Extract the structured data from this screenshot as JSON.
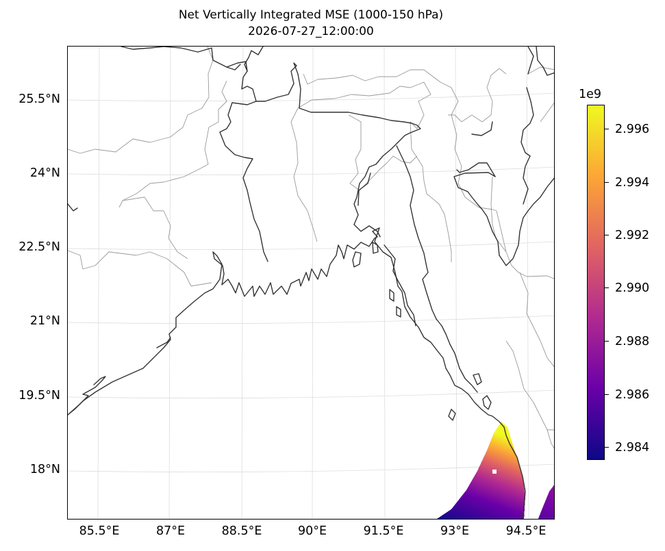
{
  "title": {
    "line1": "Net Vertically Integrated MSE (1000-150 hPa)",
    "line2": "2026-07-27_12:00:00"
  },
  "map": {
    "x_ticks": [
      "85.5°E",
      "87°E",
      "88.5°E",
      "90°E",
      "91.5°E",
      "93°E",
      "94.5°E"
    ],
    "y_ticks": [
      "25.5°N",
      "24°N",
      "22.5°N",
      "21°N",
      "19.5°N",
      "18°N"
    ],
    "colormap": "plasma",
    "coastline_color": "#333333",
    "border_color": "#999999",
    "gridline_color": "#dddddd"
  },
  "colorbar": {
    "exponent": "1e9",
    "labels": [
      "2.996",
      "2.994",
      "2.992",
      "2.990",
      "2.988",
      "2.986",
      "2.984"
    ],
    "range": [
      2.9835,
      2.997
    ],
    "colors": [
      "#0d0887",
      "#6a00a8",
      "#b12a90",
      "#e16462",
      "#fca636",
      "#f0f921"
    ]
  }
}
